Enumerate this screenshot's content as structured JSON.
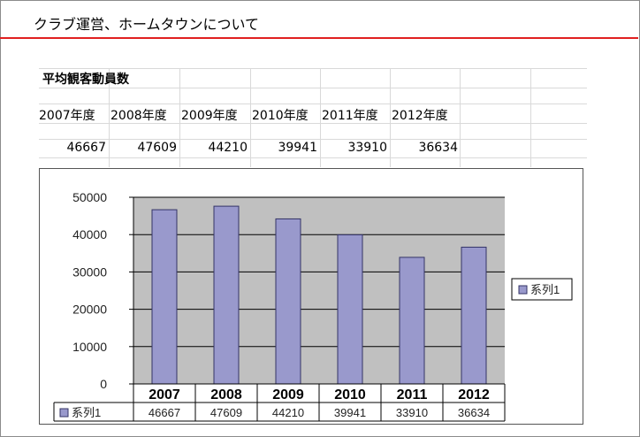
{
  "page": {
    "title": "クラブ運営、ホームタウンについて"
  },
  "sheet": {
    "table_title": "平均観客動員数",
    "headers": [
      "2007年度",
      "2008年度",
      "2009年度",
      "2010年度",
      "2011年度",
      "2012年度"
    ],
    "values": [
      "46667",
      "47609",
      "44210",
      "39941",
      "33910",
      "36634"
    ]
  },
  "colors": {
    "accent_rule": "#e02020",
    "plot_bg": "#c0c0c0",
    "bar_fill": "#9999cc",
    "bar_stroke": "#333366"
  },
  "chart_data": {
    "type": "bar",
    "categories": [
      "2007",
      "2008",
      "2009",
      "2010",
      "2011",
      "2012"
    ],
    "series": [
      {
        "name": "系列1",
        "values": [
          46667,
          47609,
          44210,
          39941,
          33910,
          36634
        ]
      }
    ],
    "yticks": [
      "0",
      "10000",
      "20000",
      "30000",
      "40000",
      "50000"
    ],
    "ylim": [
      0,
      50000
    ],
    "grid": true,
    "legend": "right",
    "data_table": true,
    "title": "",
    "xlabel": "",
    "ylabel": ""
  }
}
